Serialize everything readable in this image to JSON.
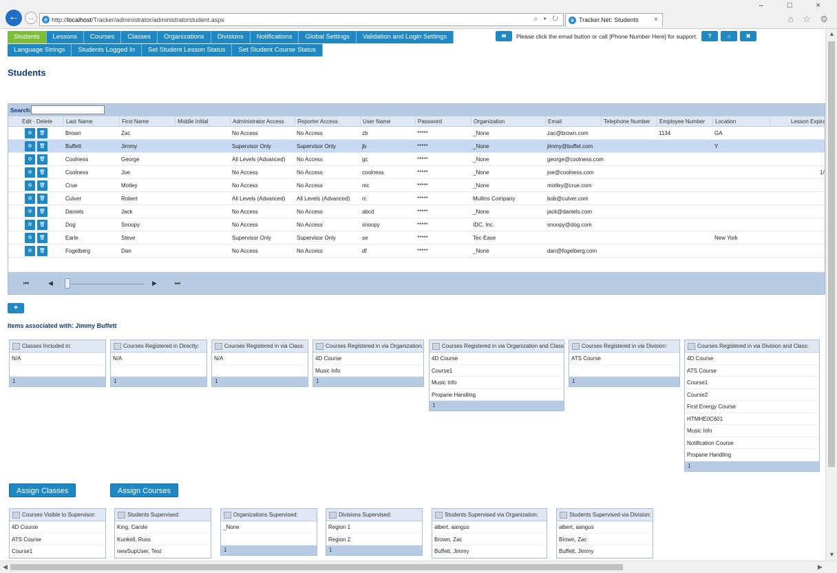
{
  "browser": {
    "url_prefix": "http://",
    "url_host": "localhost",
    "url_path": "/Tracker/administrator/administratorstudent.aspx",
    "url_controls": "⌕ ▾ ↻",
    "tab_title": "Tracker.Net: Students",
    "tab_close": "×",
    "window_controls": "–  □  ×",
    "tool_icons": "⌂ ☆ ⚙",
    "back": "←",
    "forward": "→"
  },
  "menu": {
    "row1": [
      "Students",
      "Lessons",
      "Courses",
      "Classes",
      "Organizations",
      "Divisions",
      "Notifications",
      "Global Settings",
      "Validation and Login Settings"
    ],
    "row2": [
      "Language Strings",
      "Students Logged In",
      "Set Student Lesson Status",
      "Set Student Course Status"
    ],
    "active": "Students"
  },
  "support": {
    "email_btn": "✉",
    "message": "Please click the email button or call [Phone Number Here] for support.",
    "help_btn": "?",
    "home_btn": "⌂",
    "close_btn": "✖"
  },
  "page_title": "Students",
  "grid": {
    "search_label": "Search:",
    "columns": [
      "Edit - Delete",
      "Last Name",
      "First Name",
      "Middle Initial",
      "Administrator Access",
      "Reporter Access",
      "User Name",
      "Password",
      "Organization",
      "Email",
      "Telephone Number",
      "Employee Number",
      "Location",
      "Lesson Expirati"
    ],
    "edit_icon": "⚙",
    "delete_icon": "🗑",
    "rows": [
      {
        "last": "Brown",
        "first": "Zac",
        "mi": "",
        "admin": "No Access",
        "reporter": "No Access",
        "user": "zb",
        "pwd": "*****",
        "org": "_None",
        "email": "zac@brown.com",
        "phone": "",
        "emp": "1134",
        "loc": "GA",
        "exp": "",
        "selected": false
      },
      {
        "last": "Buffett",
        "first": "Jimmy",
        "mi": "",
        "admin": "Supervisor Only",
        "reporter": "Supervisor Only",
        "user": "jb",
        "pwd": "*****",
        "org": "_None",
        "email": "jimmy@buffet.com",
        "phone": "",
        "emp": "",
        "loc": "Y",
        "exp": "",
        "selected": true
      },
      {
        "last": "Coolness",
        "first": "George",
        "mi": "",
        "admin": "All Levels (Advanced)",
        "reporter": "No Access",
        "user": "gc",
        "pwd": "*****",
        "org": "_None",
        "email": "george@coolness.com",
        "phone": "",
        "emp": "",
        "loc": "",
        "exp": "",
        "selected": false
      },
      {
        "last": "Coolness",
        "first": "Joe",
        "mi": "",
        "admin": "No Access",
        "reporter": "No Access",
        "user": "coolness",
        "pwd": "*****",
        "org": "_None",
        "email": "joe@coolness.com",
        "phone": "",
        "emp": "",
        "loc": "",
        "exp": "1/",
        "selected": false
      },
      {
        "last": "Crue",
        "first": "Motley",
        "mi": "",
        "admin": "No Access",
        "reporter": "No Access",
        "user": "mc",
        "pwd": "*****",
        "org": "_None",
        "email": "motley@crue.com",
        "phone": "",
        "emp": "",
        "loc": "",
        "exp": "",
        "selected": false
      },
      {
        "last": "Culver",
        "first": "Robert",
        "mi": "",
        "admin": "All Levels (Advanced)",
        "reporter": "All Levels (Advanced)",
        "user": "rc",
        "pwd": "*****",
        "org": "Mullins Company",
        "email": "bob@culver.com",
        "phone": "",
        "emp": "",
        "loc": "",
        "exp": "",
        "selected": false
      },
      {
        "last": "Daniels",
        "first": "Jack",
        "mi": "",
        "admin": "No Access",
        "reporter": "No Access",
        "user": "abcd",
        "pwd": "*****",
        "org": "_None",
        "email": "jack@daniels.com",
        "phone": "",
        "emp": "",
        "loc": "",
        "exp": "",
        "selected": false
      },
      {
        "last": "Dog",
        "first": "Snoopy",
        "mi": "",
        "admin": "No Access",
        "reporter": "No Access",
        "user": "snoopy",
        "pwd": "*****",
        "org": "IDC, Inc.",
        "email": "snoopy@dog.com",
        "phone": "",
        "emp": "",
        "loc": "",
        "exp": "",
        "selected": false
      },
      {
        "last": "Earle",
        "first": "Steve",
        "mi": "",
        "admin": "Supervisor Only",
        "reporter": "Supervisor Only",
        "user": "se",
        "pwd": "*****",
        "org": "Tec-Ease",
        "email": "",
        "phone": "",
        "emp": "",
        "loc": "New York",
        "exp": "",
        "selected": false
      },
      {
        "last": "Fogelberg",
        "first": "Dan",
        "mi": "",
        "admin": "No Access",
        "reporter": "No Access",
        "user": "df",
        "pwd": "*****",
        "org": "_None",
        "email": "dan@fogelberg.com",
        "phone": "",
        "emp": "",
        "loc": "",
        "exp": "",
        "selected": false
      }
    ],
    "pager": {
      "first": "⏮",
      "prev": "◀",
      "next": "▶",
      "last": "⏭"
    }
  },
  "add_button": "+",
  "assoc_title": "Items associated with: Jimmy Buffett",
  "panels_top": [
    {
      "title": "Classes Included in:",
      "items": [
        "N/A",
        ""
      ],
      "footer": "1"
    },
    {
      "title": "Courses Registered in Directly:",
      "items": [
        "N/A",
        ""
      ],
      "footer": "1"
    },
    {
      "title": "Courses Registered in via Class:",
      "items": [
        "N/A",
        ""
      ],
      "footer": "1"
    },
    {
      "title": "Courses Registered in via Organization:",
      "items": [
        "4D Course",
        "Music Info"
      ],
      "footer": "1"
    },
    {
      "title": "Courses Registered in via Organization and Class:",
      "items": [
        "4D Course",
        "Course1",
        "Music Info",
        "Propane Handling"
      ],
      "footer": "1"
    },
    {
      "title": "Courses Registered in via Division:",
      "items": [
        "ATS Course",
        ""
      ],
      "footer": "1"
    },
    {
      "title": "Courses Registered in via Division and Class:",
      "items": [
        "4D Course",
        "ATS Course",
        "Course1",
        "Course2",
        "First Energy Course",
        "HTMHE0C601",
        "Music Info",
        "Notification Course",
        "Propane Handling"
      ],
      "footer": "1"
    }
  ],
  "assign_classes": "Assign Classes",
  "assign_courses": "Assign Courses",
  "panels_bottom": [
    {
      "title": "Courses Visible to Supervisor:",
      "items": [
        "4D Course",
        "ATS Course",
        "Course1"
      ],
      "footer": ""
    },
    {
      "title": "Students Supervised:",
      "items": [
        "King, Carole",
        "Kunkell, Russ",
        "newSupUser, Test"
      ],
      "footer": ""
    },
    {
      "title": "Organizations Supervised:",
      "items": [
        "_None",
        ""
      ],
      "footer": "1"
    },
    {
      "title": "Divisions Supervised:",
      "items": [
        "Region 1",
        "Region 2"
      ],
      "footer": "1"
    },
    {
      "title": "Students Supervised via Organization:",
      "items": [
        "albert, aangus",
        "Brown, Zac",
        "Buffett, Jimmy"
      ],
      "footer": ""
    },
    {
      "title": "Students Supervised via Division:",
      "items": [
        "albert, aangus",
        "Brown, Zac",
        "Buffett, Jimmy"
      ],
      "footer": ""
    }
  ]
}
